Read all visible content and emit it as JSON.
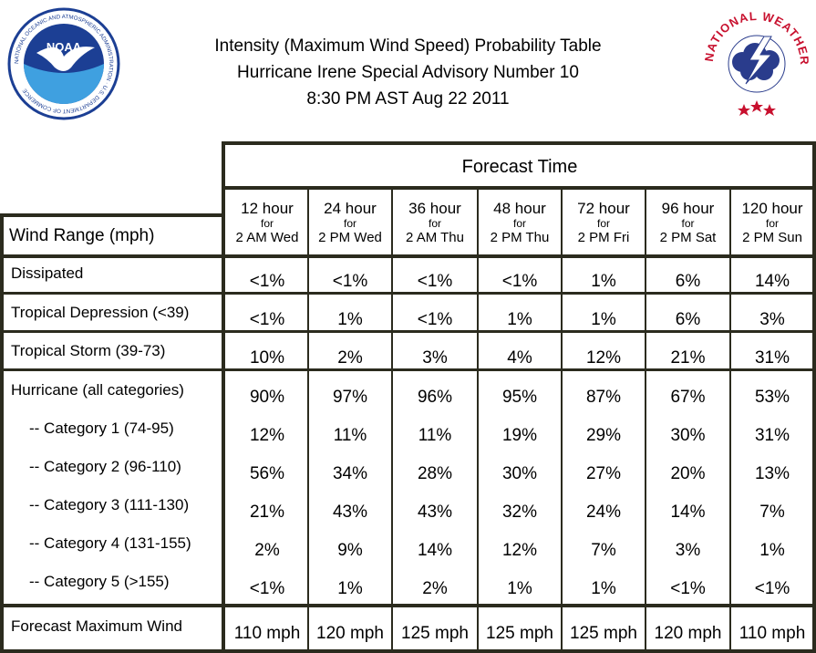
{
  "title": {
    "line1": "Intensity (Maximum Wind Speed) Probability Table",
    "line2": "Hurricane Irene Special Advisory Number 10",
    "line3": "8:30 PM AST Aug 22 2011"
  },
  "logos": {
    "noaa_text": "NOAA",
    "noaa_ring": "NATIONAL OCEANIC AND ATMOSPHERIC ADMINISTRATION · U.S. DEPARTMENT OF COMMERCE",
    "nws_ring": "NATIONAL WEATHER SERVICE"
  },
  "table": {
    "header_title": "Forecast Time",
    "row_header": "Wind Range (mph)",
    "columns": [
      {
        "hours": "12 hour",
        "for": "for",
        "day": "2 AM Wed"
      },
      {
        "hours": "24 hour",
        "for": "for",
        "day": "2 PM Wed"
      },
      {
        "hours": "36 hour",
        "for": "for",
        "day": "2 AM Thu"
      },
      {
        "hours": "48 hour",
        "for": "for",
        "day": "2 PM Thu"
      },
      {
        "hours": "72 hour",
        "for": "for",
        "day": "2 PM Fri"
      },
      {
        "hours": "96 hour",
        "for": "for",
        "day": "2 PM Sat"
      },
      {
        "hours": "120 hour",
        "for": "for",
        "day": "2 PM Sun"
      }
    ],
    "rows": [
      {
        "label": "Dissipated",
        "values": [
          "<1%",
          "<1%",
          "<1%",
          "<1%",
          "1%",
          "6%",
          "14%"
        ]
      },
      {
        "label": "Tropical Depression (<39)",
        "values": [
          "<1%",
          "1%",
          "<1%",
          "1%",
          "1%",
          "6%",
          "3%"
        ]
      },
      {
        "label": "Tropical Storm (39-73)",
        "values": [
          "10%",
          "2%",
          "3%",
          "4%",
          "12%",
          "21%",
          "31%"
        ]
      },
      {
        "label": "Hurricane (all categories)",
        "values": [
          "90%",
          "97%",
          "96%",
          "95%",
          "87%",
          "67%",
          "53%"
        ]
      },
      {
        "label": "-- Category 1 (74-95)",
        "values": [
          "12%",
          "11%",
          "11%",
          "19%",
          "29%",
          "30%",
          "31%"
        ]
      },
      {
        "label": "-- Category 2 (96-110)",
        "values": [
          "56%",
          "34%",
          "28%",
          "30%",
          "27%",
          "20%",
          "13%"
        ]
      },
      {
        "label": "-- Category 3 (111-130)",
        "values": [
          "21%",
          "43%",
          "43%",
          "32%",
          "24%",
          "14%",
          "7%"
        ]
      },
      {
        "label": "-- Category 4 (131-155)",
        "values": [
          "2%",
          "9%",
          "14%",
          "12%",
          "7%",
          "3%",
          "1%"
        ]
      },
      {
        "label": "-- Category 5 (>155)",
        "values": [
          "<1%",
          "1%",
          "2%",
          "1%",
          "1%",
          "<1%",
          "<1%"
        ]
      },
      {
        "label": "Forecast Maximum Wind",
        "values": [
          "110 mph",
          "120 mph",
          "125 mph",
          "125 mph",
          "125 mph",
          "120 mph",
          "110 mph"
        ]
      }
    ]
  },
  "colors": {
    "border": "#2b2b1e",
    "noaa_blue": "#1c3f94",
    "nws_red": "#c8102e"
  }
}
